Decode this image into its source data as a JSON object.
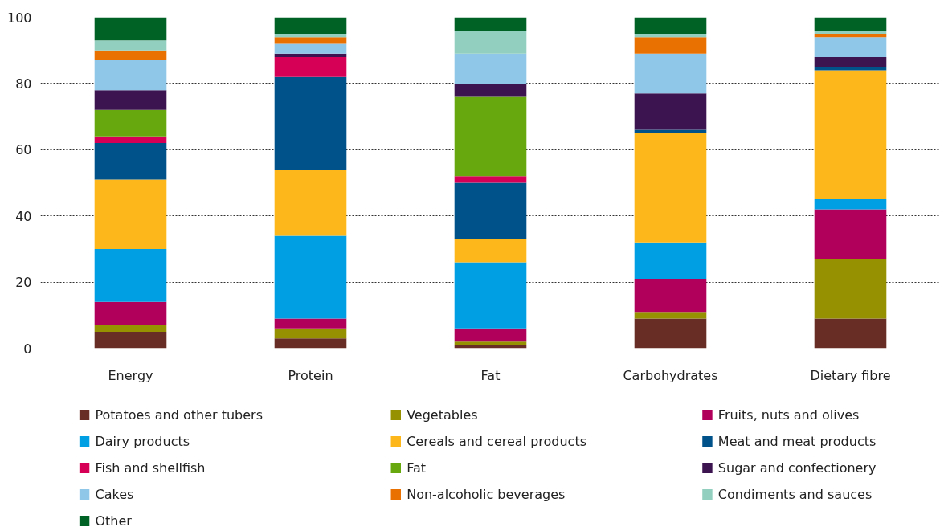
{
  "chart_data": {
    "type": "bar",
    "stacked": true,
    "categories": [
      "Energy",
      "Protein",
      "Fat",
      "Carbohydrates",
      "Dietary fibre"
    ],
    "ylim": [
      0,
      100
    ],
    "yticks": [
      0,
      20,
      40,
      60,
      80,
      100
    ],
    "grid": "y",
    "legend": "bottom",
    "series": [
      {
        "name": "Potatoes and other tubers",
        "color": "#682d24",
        "values": [
          5,
          3,
          1,
          9,
          9
        ]
      },
      {
        "name": "Vegetables",
        "color": "#969100",
        "values": [
          2,
          3,
          1,
          2,
          18
        ]
      },
      {
        "name": "Fruits, nuts and olives",
        "color": "#b0005b",
        "values": [
          7,
          3,
          4,
          10,
          15
        ]
      },
      {
        "name": "Dairy products",
        "color": "#009fe3",
        "values": [
          16,
          25,
          20,
          11,
          3
        ]
      },
      {
        "name": "Cereals and cereal products",
        "color": "#fdb71a",
        "values": [
          21,
          20,
          7,
          33,
          39
        ]
      },
      {
        "name": "Meat and meat products",
        "color": "#00538a",
        "values": [
          11,
          28,
          17,
          1,
          1
        ]
      },
      {
        "name": "Fish and shellfish",
        "color": "#d60056",
        "values": [
          2,
          6,
          2,
          0,
          0
        ]
      },
      {
        "name": "Fat",
        "color": "#66a80e",
        "values": [
          8,
          0,
          24,
          0,
          0
        ]
      },
      {
        "name": "Sugar and confectionery",
        "color": "#3c1450",
        "values": [
          6,
          1,
          4,
          11,
          3
        ]
      },
      {
        "name": "Cakes",
        "color": "#8fc7e8",
        "values": [
          9,
          3,
          9,
          12,
          6
        ]
      },
      {
        "name": "Non-alcoholic beverages",
        "color": "#e87102",
        "values": [
          3,
          2,
          0,
          5,
          1
        ]
      },
      {
        "name": "Condiments and sauces",
        "color": "#93cfbf",
        "values": [
          3,
          1,
          7,
          1,
          1
        ]
      },
      {
        "name": "Other",
        "color": "#006225",
        "values": [
          7,
          5,
          4,
          5,
          4
        ]
      }
    ]
  }
}
